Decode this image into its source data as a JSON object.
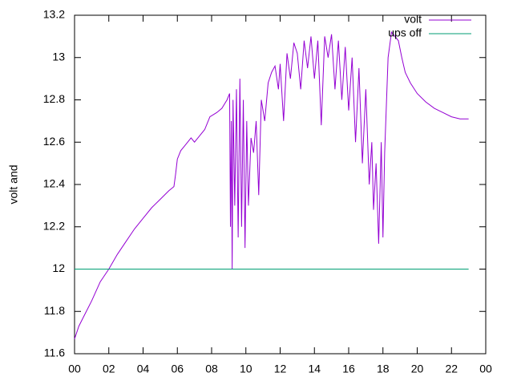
{
  "chart_data": {
    "type": "line",
    "ylabel": "volt and",
    "xlim": [
      0,
      24
    ],
    "ylim": [
      11.6,
      13.2
    ],
    "xticks": [
      {
        "value": 0,
        "label": "00"
      },
      {
        "value": 2,
        "label": "02"
      },
      {
        "value": 4,
        "label": "04"
      },
      {
        "value": 6,
        "label": "06"
      },
      {
        "value": 8,
        "label": "08"
      },
      10,
      12,
      14,
      16,
      18,
      20,
      22,
      {
        "value": 24,
        "label": "00"
      }
    ],
    "yticks": [
      11.6,
      11.8,
      12,
      12.2,
      12.4,
      12.6,
      12.8,
      13,
      13.2
    ],
    "legend": "top-right",
    "series": [
      {
        "name": "volt",
        "color": "#9400d3",
        "x": [
          0,
          0.25,
          0.5,
          1,
          1.5,
          2,
          2.5,
          3,
          3.5,
          4,
          4.5,
          5,
          5.5,
          5.8,
          5.9,
          6,
          6.2,
          6.5,
          6.8,
          7,
          7.3,
          7.6,
          7.9,
          8.3,
          8.6,
          8.9,
          9.05,
          9.1,
          9.15,
          9.2,
          9.25,
          9.35,
          9.45,
          9.55,
          9.65,
          9.75,
          9.85,
          9.95,
          10.05,
          10.15,
          10.3,
          10.45,
          10.6,
          10.75,
          10.9,
          11.1,
          11.3,
          11.5,
          11.7,
          11.9,
          12,
          12.2,
          12.4,
          12.6,
          12.8,
          13,
          13.2,
          13.4,
          13.6,
          13.8,
          14,
          14.2,
          14.4,
          14.6,
          14.8,
          15,
          15.2,
          15.4,
          15.6,
          15.8,
          16,
          16.2,
          16.4,
          16.6,
          16.8,
          17,
          17.2,
          17.35,
          17.45,
          17.6,
          17.75,
          17.9,
          18,
          18.1,
          18.3,
          18.5,
          18.7,
          18.9,
          19.1,
          19.3,
          19.6,
          20,
          20.5,
          21,
          21.5,
          22,
          22.5,
          23
        ],
        "values": [
          11.67,
          11.73,
          11.77,
          11.85,
          11.94,
          12.0,
          12.07,
          12.13,
          12.19,
          12.24,
          12.29,
          12.33,
          12.37,
          12.39,
          12.45,
          12.52,
          12.56,
          12.59,
          12.62,
          12.6,
          12.63,
          12.66,
          12.72,
          12.74,
          12.76,
          12.8,
          12.83,
          12.2,
          12.7,
          12.0,
          12.8,
          12.3,
          12.85,
          12.15,
          12.9,
          12.2,
          12.8,
          12.1,
          12.7,
          12.3,
          12.62,
          12.55,
          12.7,
          12.35,
          12.8,
          12.7,
          12.88,
          12.93,
          12.96,
          12.85,
          12.97,
          12.7,
          13.02,
          12.9,
          13.07,
          13.02,
          12.85,
          13.08,
          12.95,
          13.1,
          12.9,
          13.08,
          12.68,
          13.1,
          13.0,
          13.11,
          12.85,
          13.08,
          12.8,
          13.05,
          12.75,
          13.0,
          12.6,
          12.95,
          12.5,
          12.85,
          12.4,
          12.6,
          12.28,
          12.5,
          12.12,
          12.6,
          12.15,
          12.55,
          13.0,
          13.12,
          13.1,
          13.08,
          13.0,
          12.93,
          12.88,
          12.83,
          12.79,
          12.76,
          12.74,
          12.72,
          12.71,
          12.71
        ]
      },
      {
        "name": "ups off",
        "color": "#009e73",
        "x": [
          0,
          23
        ],
        "values": [
          12,
          12
        ]
      }
    ]
  }
}
